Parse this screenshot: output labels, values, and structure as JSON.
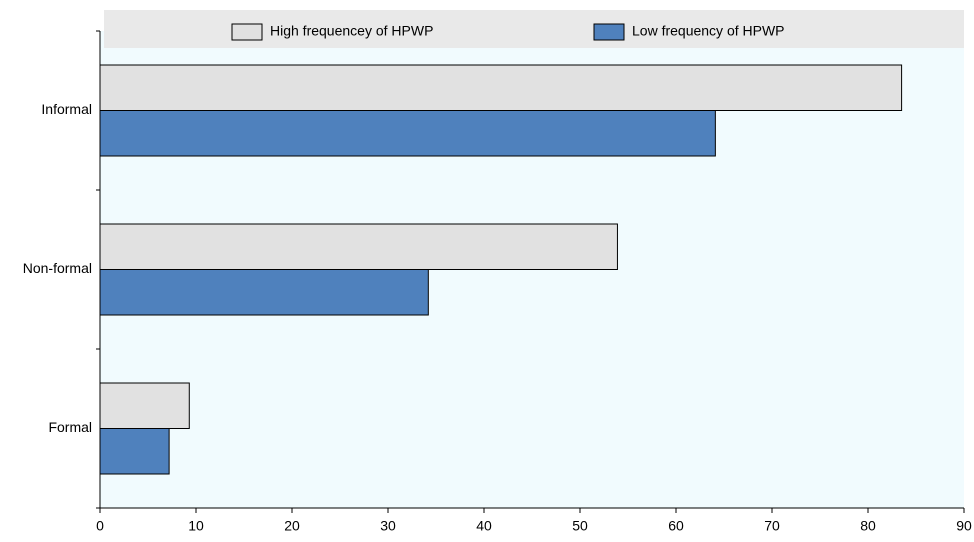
{
  "chart_data": {
    "type": "hbar",
    "categories": [
      "Informal",
      "Non-formal",
      "Formal"
    ],
    "series": [
      {
        "name": "High frequencey of HPWP",
        "color": "#e1e1e1",
        "values": [
          83.5,
          53.9,
          9.3
        ]
      },
      {
        "name": "Low frequency of HPWP",
        "color": "#4f81bd",
        "values": [
          64.1,
          34.2,
          7.2
        ]
      }
    ],
    "xlim": [
      0,
      90
    ],
    "xticks": [
      0,
      10,
      20,
      30,
      40,
      50,
      60,
      70,
      80,
      90
    ],
    "legend": "top"
  }
}
